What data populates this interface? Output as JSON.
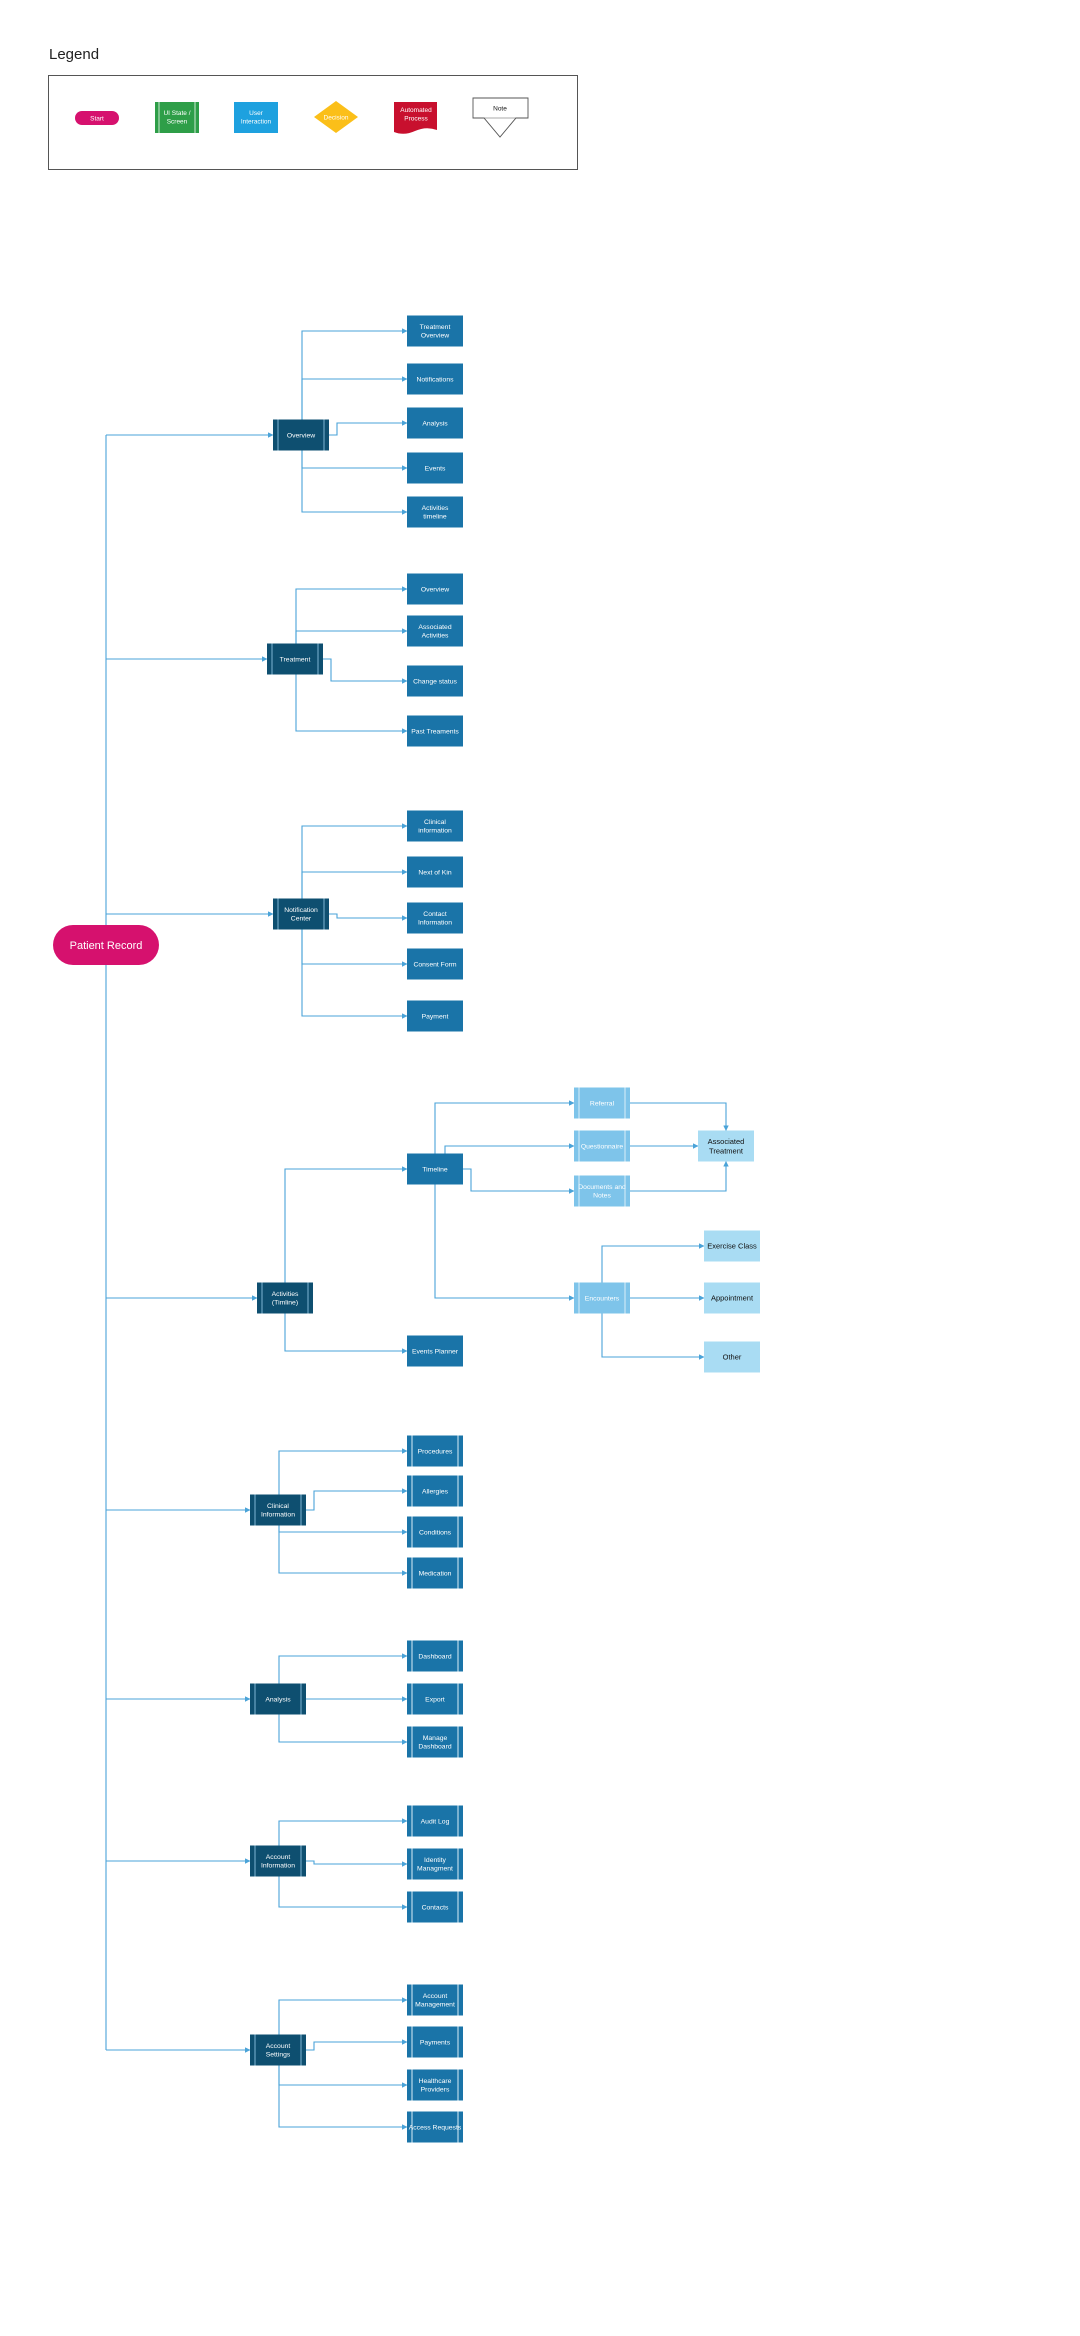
{
  "legend": {
    "title": "Legend",
    "start": "Start",
    "ui_state": "UI State / Screen",
    "user_interaction": "User Interaction",
    "decision": "Decision",
    "automated": "Automated Process",
    "note": "Note"
  },
  "colors": {
    "line": "#4aa3d8",
    "start": "#d6116e",
    "hub": "#0e4f70",
    "screen": "#1a74a8",
    "light": "#7ec4ea",
    "lighter": "#a9dcf3",
    "legend_green": "#2e9e48",
    "legend_blue": "#1ea1df",
    "legend_yellow": "#fbbf19",
    "legend_red": "#c8102e"
  },
  "root": {
    "label": "Patient Record"
  },
  "sections": {
    "overview": {
      "hub": "Overview",
      "children": [
        "Treatment Overview",
        "Notifications",
        "Analysis",
        "Events",
        "Activities timeline"
      ]
    },
    "treatment": {
      "hub": "Treatment",
      "children": [
        "Overview",
        "Associated Activities",
        "Change status",
        "Past Treaments"
      ]
    },
    "notification": {
      "hub": "Notification Center",
      "children": [
        "Clinical information",
        "Next of Kin",
        "Contact Information",
        "Consent Form",
        "Payment"
      ]
    },
    "activities": {
      "hub": "Activities (Timline)",
      "timeline": "Timeline",
      "events_planner": "Events Planner",
      "referral": "Referral",
      "questionnaire": "Questionnaire",
      "documents": "Documents and Notes",
      "associated_treatment": "Associated Treatment",
      "encounters": "Encounters",
      "exercise_class": "Exercise Class",
      "appointment": "Appointment",
      "other": "Other"
    },
    "clinical": {
      "hub": "Clinical Information",
      "children": [
        "Procedures",
        "Allergies",
        "Conditions",
        "Medication"
      ]
    },
    "analysis": {
      "hub": "Analysis",
      "children": [
        "Dashboard",
        "Export",
        "Manage Dashboard"
      ]
    },
    "account_info": {
      "hub": "Account Information",
      "children": [
        "Audit Log",
        "Identity Managment",
        "Contacts"
      ]
    },
    "account_settings": {
      "hub": "Account Settings",
      "children": [
        "Account Management",
        "Payments",
        "Healthcare Providers",
        "Access Requests"
      ]
    }
  }
}
